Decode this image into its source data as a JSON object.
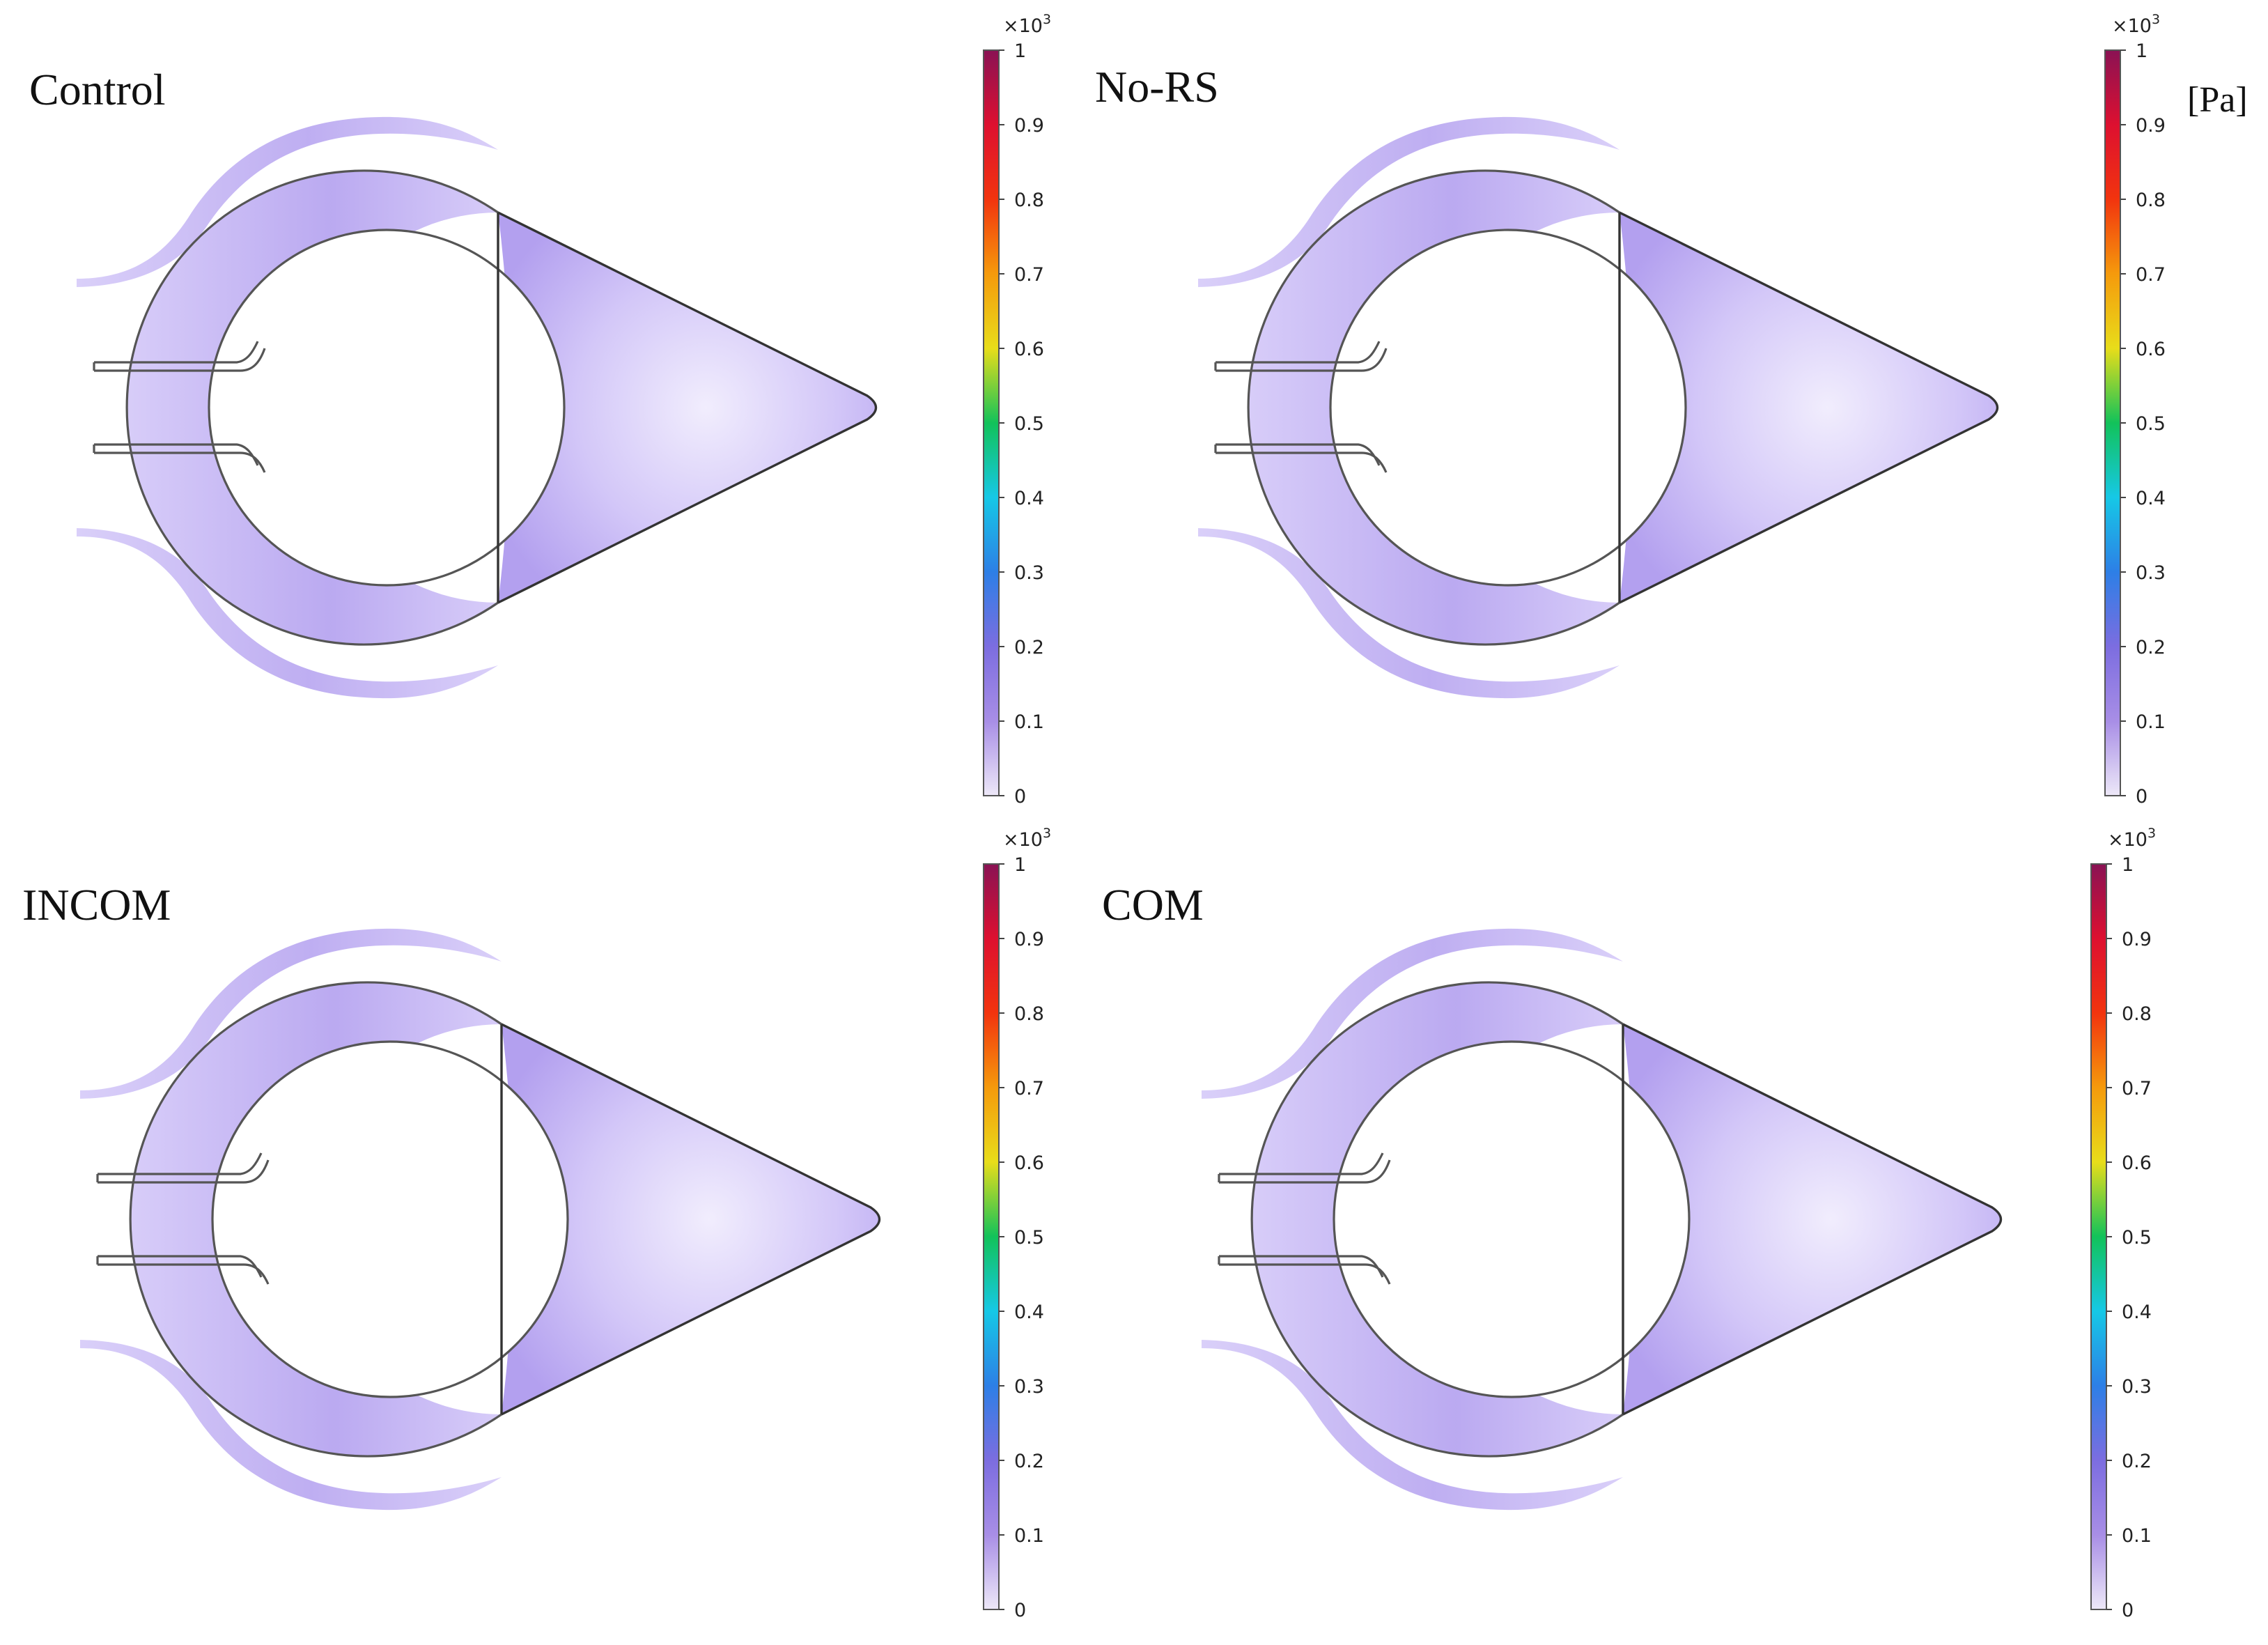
{
  "panels": [
    {
      "id": "control",
      "title": "Control"
    },
    {
      "id": "no-rs",
      "title": "No-RS"
    },
    {
      "id": "incom",
      "title": "INCOM"
    },
    {
      "id": "com",
      "title": "COM"
    }
  ],
  "colorbar": {
    "multiplier": "×10",
    "exponent": "3",
    "ticks": [
      "0",
      "0.1",
      "0.2",
      "0.3",
      "0.4",
      "0.5",
      "0.6",
      "0.7",
      "0.8",
      "0.9",
      "1"
    ],
    "unit": "[Pa]",
    "colors": [
      "#ede8f8",
      "#a88ee6",
      "#7c6de0",
      "#2d7fe6",
      "#16c8e6",
      "#12c25a",
      "#e8dd1a",
      "#f59a0c",
      "#f2340e",
      "#dd1030",
      "#8a1254"
    ]
  },
  "field_colors": {
    "high": "#b3a0ef",
    "mid": "#d3c7f8",
    "low": "#f1edfd"
  }
}
